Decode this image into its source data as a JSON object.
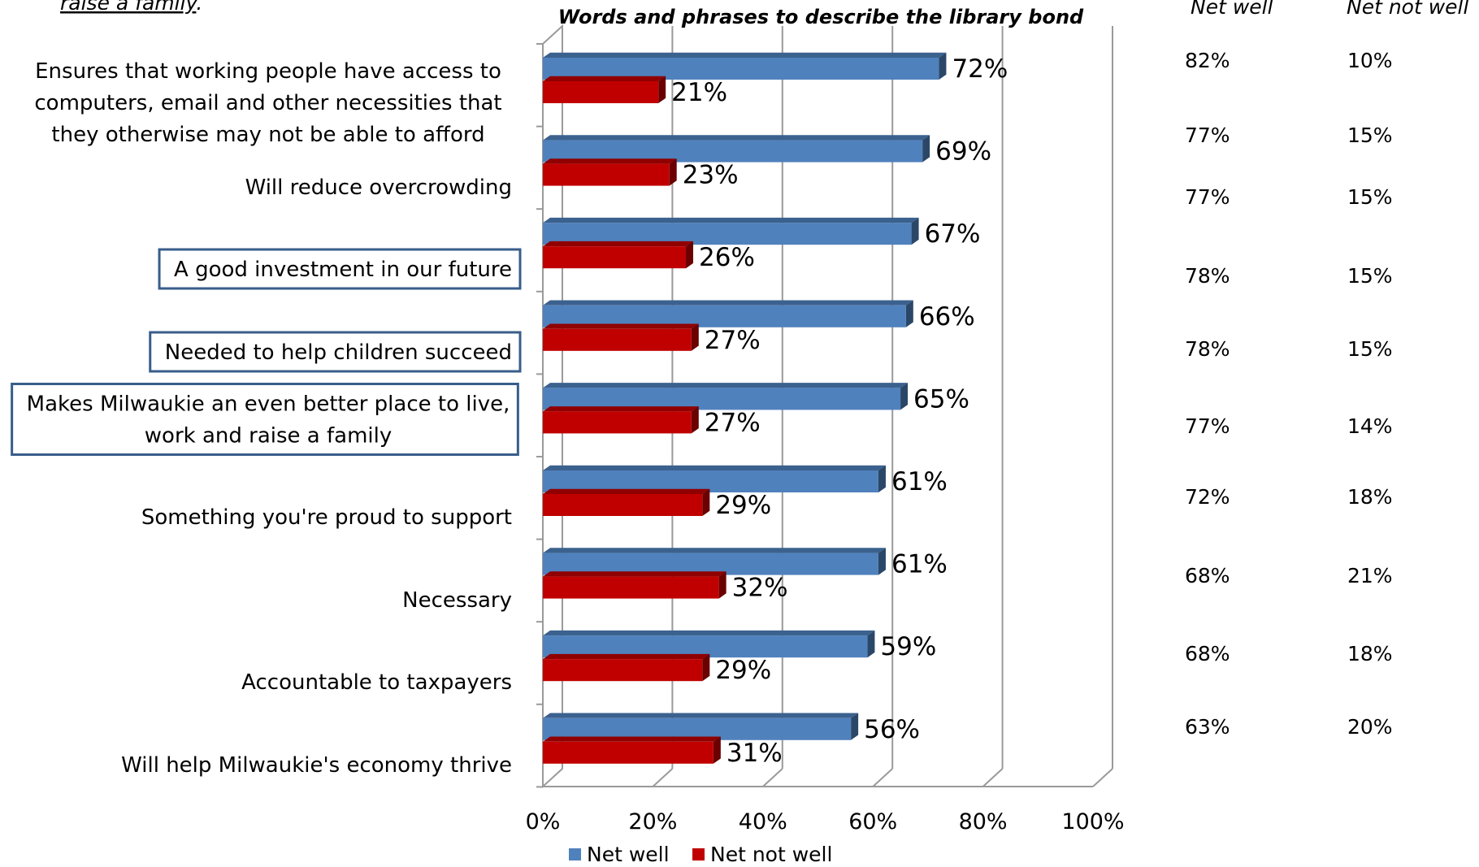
{
  "top_fragment": "raise a family",
  "top_fragment_punct": ".",
  "right_headers": [
    "Net well",
    "Net not well"
  ],
  "right_table": [
    [
      "82%",
      "10%"
    ],
    [
      "77%",
      "15%"
    ],
    [
      "77%",
      "15%"
    ],
    [
      "78%",
      "15%"
    ],
    [
      "78%",
      "15%"
    ],
    [
      "77%",
      "14%"
    ],
    [
      "72%",
      "18%"
    ],
    [
      "68%",
      "21%"
    ],
    [
      "68%",
      "18%"
    ],
    [
      "63%",
      "20%"
    ]
  ],
  "chart_data": {
    "type": "bar",
    "orientation": "horizontal",
    "title": "Words and phrases to describe the library bond",
    "categories": [
      [
        "Ensures that working people have access to",
        "computers, email and other necessities that",
        "they otherwise may not be able to afford"
      ],
      [
        "Will reduce overcrowding"
      ],
      [
        "A good investment in our future"
      ],
      [
        "Needed to help children succeed"
      ],
      [
        "Makes Milwaukie an even better place to live,",
        "work and raise a family"
      ],
      [
        "Something you're proud to support"
      ],
      [
        "Necessary"
      ],
      [
        "Accountable to taxpayers"
      ],
      [
        "Will help Milwaukie's economy thrive"
      ]
    ],
    "boxed_categories": [
      2,
      3,
      4
    ],
    "series": [
      {
        "name": "Net well",
        "color": "#4f81bd",
        "values": [
          72,
          69,
          67,
          66,
          65,
          61,
          61,
          59,
          56
        ]
      },
      {
        "name": "Net not well",
        "color": "#c00000",
        "values": [
          21,
          23,
          26,
          27,
          27,
          29,
          32,
          29,
          31
        ]
      }
    ],
    "xlim": [
      0,
      100
    ],
    "xticks": [
      "0%",
      "20%",
      "40%",
      "60%",
      "80%",
      "100%"
    ],
    "legend": "bottom",
    "grid": true
  }
}
